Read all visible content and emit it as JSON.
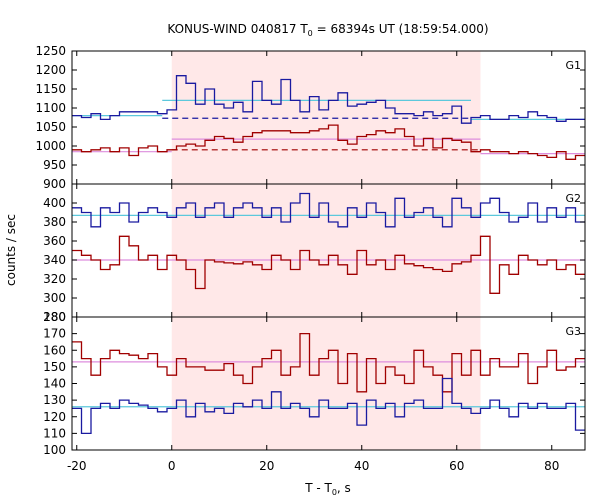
{
  "chart_data": {
    "type": "line",
    "title_main": "KONUS-WIND 040817 T",
    "title_sub": "0",
    "title_rest": " = 68394s UT (18:59:54.000)",
    "xlabel_main": "T - T",
    "xlabel_sub": "0",
    "xlabel_rest": ", s",
    "ylabel": "counts / sec",
    "xlim": [
      -21,
      87
    ],
    "x_ticks": [
      -20,
      0,
      20,
      40,
      60,
      80
    ],
    "shaded_interval": [
      0,
      65
    ],
    "colors": {
      "blue": "#1a1aa0",
      "red": "#a00000",
      "cyan": "#5cc8dc",
      "pink": "#dd8edd",
      "shade": "#ffe8e8"
    },
    "panels": [
      {
        "label": "G1",
        "ylim": [
          900,
          1250
        ],
        "y_ticks": [
          900,
          950,
          1000,
          1050,
          1100,
          1150,
          1200,
          1250
        ],
        "series": [
          {
            "color": "blue",
            "x_start": -21,
            "step": 2,
            "values": [
              1080,
              1075,
              1085,
              1070,
              1080,
              1090,
              1090,
              1090,
              1090,
              1085,
              1095,
              1185,
              1165,
              1110,
              1150,
              1110,
              1100,
              1115,
              1090,
              1170,
              1120,
              1110,
              1175,
              1120,
              1090,
              1130,
              1095,
              1120,
              1140,
              1105,
              1110,
              1115,
              1120,
              1100,
              1085,
              1085,
              1080,
              1090,
              1080,
              1085,
              1105,
              1060,
              1075,
              1080,
              1070,
              1070,
              1080,
              1075,
              1090,
              1080,
              1075,
              1065,
              1070,
              1070
            ]
          },
          {
            "color": "red",
            "x_start": -21,
            "step": 2,
            "values": [
              990,
              985,
              990,
              995,
              985,
              995,
              975,
              995,
              1000,
              985,
              990,
              1000,
              1005,
              1000,
              1015,
              1025,
              1020,
              1010,
              1025,
              1035,
              1040,
              1040,
              1040,
              1035,
              1035,
              1040,
              1045,
              1055,
              1015,
              1005,
              1025,
              1030,
              1040,
              1035,
              1045,
              1025,
              1000,
              1020,
              995,
              1020,
              1015,
              1010,
              985,
              990,
              985,
              985,
              980,
              985,
              980,
              975,
              970,
              985,
              965,
              975
            ]
          }
        ],
        "fits": [
          {
            "color": "cyan",
            "x": [
              -21,
              -2
            ],
            "y": 1080
          },
          {
            "color": "cyan",
            "x": [
              -2,
              63
            ],
            "y": 1120
          },
          {
            "color": "cyan",
            "x": [
              63,
              87
            ],
            "y": 1070
          },
          {
            "color": "blue",
            "dashed": true,
            "x": [
              -2,
              63
            ],
            "y": 1073
          },
          {
            "color": "pink",
            "x": [
              -21,
              0
            ],
            "y": 985
          },
          {
            "color": "pink",
            "x": [
              0,
              65
            ],
            "y": 1018
          },
          {
            "color": "pink",
            "x": [
              65,
              87
            ],
            "y": 980
          },
          {
            "color": "red",
            "dashed": true,
            "x": [
              0,
              65
            ],
            "y": 990
          }
        ]
      },
      {
        "label": "G2",
        "ylim": [
          280,
          420
        ],
        "y_ticks": [
          280,
          300,
          320,
          340,
          360,
          380,
          400
        ],
        "series": [
          {
            "color": "blue",
            "x_start": -21,
            "step": 2,
            "values": [
              395,
              390,
              375,
              395,
              390,
              400,
              380,
              390,
              395,
              390,
              385,
              395,
              400,
              385,
              395,
              400,
              385,
              395,
              400,
              395,
              385,
              395,
              380,
              400,
              410,
              385,
              400,
              380,
              375,
              395,
              385,
              400,
              390,
              375,
              405,
              385,
              390,
              395,
              385,
              375,
              405,
              395,
              385,
              400,
              405,
              390,
              380,
              385,
              400,
              380,
              395,
              385,
              395,
              380
            ]
          },
          {
            "color": "red",
            "x_start": -21,
            "step": 2,
            "values": [
              350,
              345,
              340,
              330,
              335,
              365,
              355,
              340,
              345,
              330,
              345,
              340,
              330,
              310,
              340,
              338,
              337,
              336,
              338,
              335,
              330,
              345,
              340,
              330,
              350,
              340,
              335,
              345,
              335,
              325,
              350,
              335,
              340,
              330,
              345,
              336,
              334,
              332,
              330,
              328,
              336,
              338,
              345,
              365,
              305,
              335,
              325,
              345,
              340,
              335,
              340,
              330,
              335,
              325
            ]
          }
        ],
        "fits": [
          {
            "color": "cyan",
            "x": [
              -21,
              87
            ],
            "y": 387
          },
          {
            "color": "pink",
            "x": [
              -21,
              87
            ],
            "y": 340
          }
        ]
      },
      {
        "label": "G3",
        "ylim": [
          100,
          180
        ],
        "y_ticks": [
          100,
          110,
          120,
          130,
          140,
          150,
          160,
          170,
          180
        ],
        "series": [
          {
            "color": "red",
            "x_start": -21,
            "step": 2,
            "values": [
              165,
              155,
              145,
              155,
              160,
              158,
              157,
              155,
              158,
              150,
              145,
              155,
              150,
              150,
              148,
              148,
              152,
              145,
              140,
              150,
              155,
              160,
              145,
              150,
              170,
              145,
              155,
              160,
              140,
              158,
              135,
              155,
              140,
              150,
              145,
              140,
              160,
              150,
              145,
              135,
              158,
              145,
              160,
              145,
              155,
              150,
              150,
              158,
              140,
              150,
              160,
              148,
              150,
              155
            ]
          },
          {
            "color": "blue",
            "x_start": -21,
            "step": 2,
            "values": [
              125,
              110,
              125,
              128,
              125,
              130,
              128,
              127,
              125,
              123,
              125,
              130,
              120,
              128,
              123,
              125,
              122,
              128,
              126,
              130,
              125,
              135,
              125,
              128,
              125,
              120,
              130,
              125,
              125,
              128,
              115,
              130,
              125,
              128,
              120,
              128,
              130,
              125,
              125,
              143,
              128,
              125,
              122,
              125,
              130,
              125,
              120,
              128,
              125,
              128,
              125,
              125,
              128,
              112
            ]
          }
        ],
        "fits": [
          {
            "color": "pink",
            "x": [
              -21,
              87
            ],
            "y": 153
          },
          {
            "color": "cyan",
            "x": [
              -21,
              87
            ],
            "y": 126
          }
        ]
      }
    ]
  }
}
